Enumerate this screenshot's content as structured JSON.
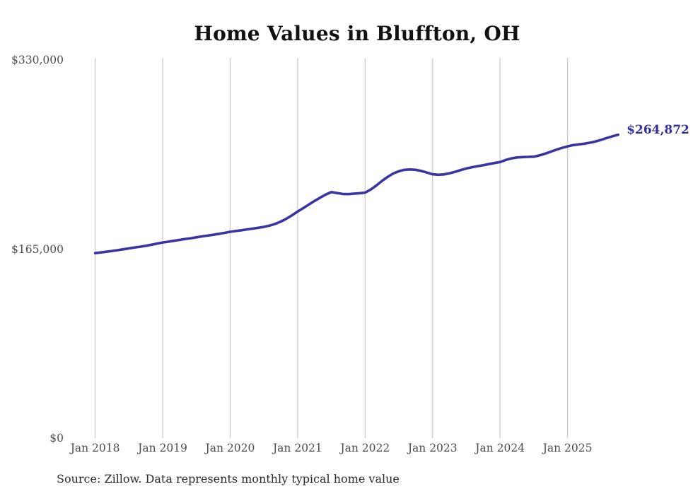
{
  "chart_data": {
    "type": "line",
    "title": "Home Values in Bluffton, OH",
    "source": "Source: Zillow. Data represents monthly typical home value",
    "series_name": "Monthly typical home value",
    "unit": "USD",
    "x_start_month": "2018-01",
    "x_end_month": "2025-10",
    "x_cadence": "monthly",
    "values": [
      161500,
      162100,
      162700,
      163400,
      164100,
      164900,
      165600,
      166400,
      167100,
      167900,
      168800,
      169800,
      170800,
      171500,
      172300,
      173000,
      173800,
      174500,
      175300,
      176100,
      176800,
      177500,
      178300,
      179200,
      180100,
      180800,
      181500,
      182200,
      182900,
      183600,
      184400,
      185500,
      187000,
      189000,
      191500,
      194500,
      197800,
      200800,
      203900,
      207000,
      209900,
      212600,
      214800,
      214000,
      213200,
      213000,
      213400,
      213800,
      214300,
      217000,
      220500,
      224500,
      228000,
      231000,
      233000,
      234200,
      234500,
      234200,
      233200,
      231800,
      230300,
      229900,
      230200,
      231200,
      232500,
      234000,
      235400,
      236500,
      237400,
      238200,
      239200,
      240100,
      241000,
      242800,
      244200,
      245000,
      245300,
      245500,
      245700,
      246800,
      248300,
      250000,
      251800,
      253300,
      254700,
      255800,
      256400,
      257000,
      257900,
      259000,
      260400,
      262000,
      263500,
      264872
    ],
    "last_value": 264872,
    "end_label": "$264,872",
    "ylim": [
      0,
      330000
    ],
    "y_ticks": [
      {
        "value": 0,
        "label": "$0"
      },
      {
        "value": 165000,
        "label": "$165,000"
      },
      {
        "value": 330000,
        "label": "$330,000"
      }
    ],
    "x_ticks": [
      {
        "month_index": 0,
        "label": "Jan 2018"
      },
      {
        "month_index": 12,
        "label": "Jan 2019"
      },
      {
        "month_index": 24,
        "label": "Jan 2020"
      },
      {
        "month_index": 36,
        "label": "Jan 2021"
      },
      {
        "month_index": 48,
        "label": "Jan 2022"
      },
      {
        "month_index": 60,
        "label": "Jan 2023"
      },
      {
        "month_index": 72,
        "label": "Jan 2024"
      },
      {
        "month_index": 84,
        "label": "Jan 2025"
      }
    ],
    "grid": "vertical-only",
    "legend": "none",
    "colors": {
      "line": "#3a34a3",
      "grid": "#cccccc",
      "axis_label": "#4d4d4d",
      "title": "#111111",
      "end_label": "#342e9e",
      "source": "#2b2b2b"
    }
  }
}
